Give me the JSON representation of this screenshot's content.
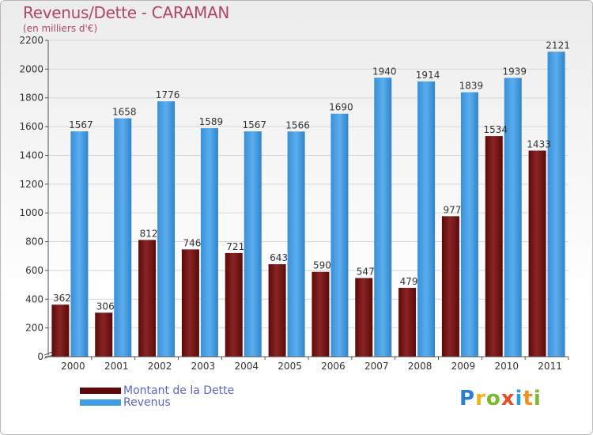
{
  "title": "Revenus/Dette - CARAMAN",
  "subtitle": "(en milliers d'€)",
  "legend": {
    "dette": "Montant de la Dette",
    "revenus": "Revenus"
  },
  "logo": "Proxiti",
  "colors": {
    "dette": "#7a1818",
    "revenus": "#3f9de6",
    "title": "#b2446b",
    "legend_text": "#5567c9"
  },
  "chart_data": {
    "type": "bar",
    "title": "Revenus/Dette - CARAMAN",
    "ylabel": "(en milliers d'€)",
    "xlabel": "",
    "categories": [
      "2000",
      "2001",
      "2002",
      "2003",
      "2004",
      "2005",
      "2006",
      "2007",
      "2008",
      "2009",
      "2010",
      "2011"
    ],
    "series": [
      {
        "name": "Montant de la Dette",
        "values": [
          362,
          306,
          812,
          746,
          721,
          643,
          590,
          547,
          479,
          977,
          1534,
          1433
        ],
        "labels": [
          "362",
          "306",
          "812",
          "746",
          "721",
          "643",
          "590",
          "547",
          "479",
          "977",
          "1534",
          "1433"
        ]
      },
      {
        "name": "Revenus",
        "values": [
          1567,
          1658,
          1776,
          1589,
          1567,
          1566,
          1690,
          1940,
          1914,
          1839,
          1939,
          2121
        ],
        "labels": [
          "1567",
          "1658",
          "1776",
          "1589",
          "1567",
          "1566",
          "1690",
          "1940",
          "1914",
          "1839",
          "1939",
          "2121"
        ]
      }
    ],
    "ylim": [
      0,
      2200
    ],
    "yticks": [
      "0",
      "200",
      "400",
      "600",
      "800",
      "1000",
      "1200",
      "1400",
      "1600",
      "1800",
      "2000",
      "2200"
    ],
    "grid": true,
    "legend_position": "bottom-left"
  }
}
